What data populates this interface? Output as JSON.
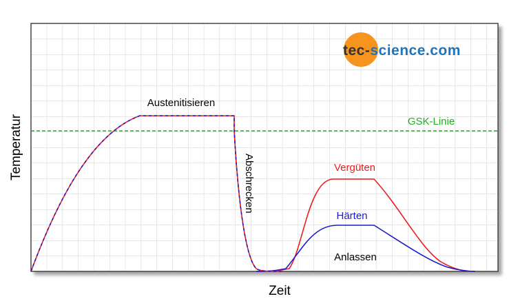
{
  "diagram": {
    "xlabel": "Zeit",
    "ylabel": "Temperatur",
    "labels": {
      "austenitisieren": "Austenitisieren",
      "gsk_linie": "GSK-Linie",
      "abschrecken": "Abschrecken",
      "verguten": "Vergüten",
      "harten": "Härten",
      "anlassen": "Anlassen"
    },
    "colors": {
      "red": "#ee1c1c",
      "blue": "#1a1acc",
      "green": "#22aa22",
      "grid": "#cfcfcf",
      "frame": "#333333",
      "logo_orange": "#f7941d",
      "logo_blue": "#1f75bb"
    }
  },
  "logo": {
    "part1": "tec-",
    "part2": "science.com"
  }
}
